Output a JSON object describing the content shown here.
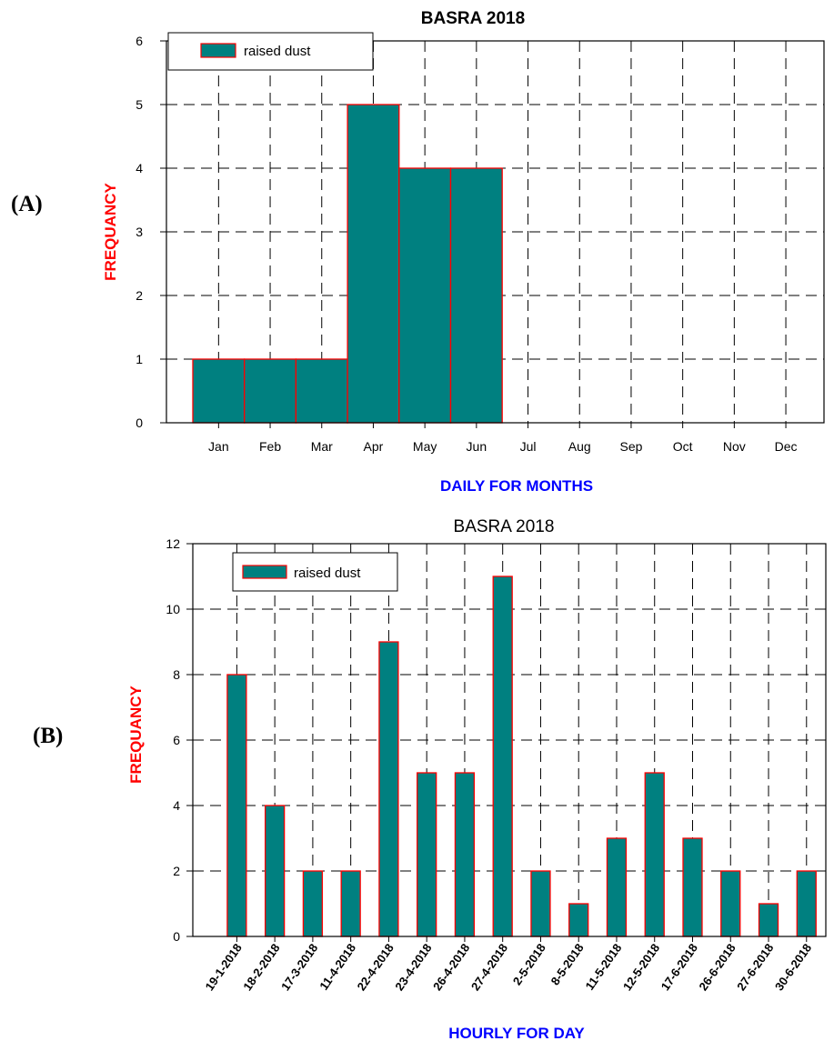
{
  "panels": {
    "a": {
      "letter": "(A)"
    },
    "b": {
      "letter": "(B)"
    }
  },
  "colors": {
    "bar_fill": "#008080",
    "bar_edge": "#ff0000",
    "ylabel": "#ff0000",
    "xlabel": "#0000ff"
  },
  "chart_data": [
    {
      "type": "bar",
      "title": "BASRA 2018",
      "xlabel": "DAILY FOR MONTHS",
      "ylabel": "FREQUANCY",
      "categories": [
        "Jan",
        "Feb",
        "Mar",
        "Apr",
        "May",
        "Jun",
        "Jul",
        "Aug",
        "Sep",
        "Oct",
        "Nov",
        "Dec"
      ],
      "series": [
        {
          "name": "raised dust",
          "values": [
            1,
            1,
            1,
            5,
            4,
            4,
            0,
            0,
            0,
            0,
            0,
            0
          ]
        }
      ],
      "ylim": [
        0,
        6
      ],
      "yticks": [
        0,
        1,
        2,
        3,
        4,
        5,
        6
      ],
      "grid": true,
      "legend": "top-left"
    },
    {
      "type": "bar",
      "title": "BASRA 2018",
      "xlabel": "HOURLY FOR DAY",
      "ylabel": "FREQUANCY",
      "categories": [
        "19-1-2018",
        "18-2-2018",
        "17-3-2018",
        "11-4-2018",
        "22-4-2018",
        "23-4-2018",
        "26-4-2018",
        "27-4-2018",
        "2-5-2018",
        "8-5-2018",
        "11-5-2018",
        "12-5-2018",
        "17-6-2018",
        "26-6-2018",
        "27-6-2018",
        "30-6-2018"
      ],
      "series": [
        {
          "name": "raised dust",
          "values": [
            8,
            4,
            2,
            2,
            9,
            5,
            5,
            11,
            2,
            1,
            3,
            5,
            3,
            2,
            1,
            2
          ]
        }
      ],
      "ylim": [
        0,
        12
      ],
      "yticks": [
        0,
        2,
        4,
        6,
        8,
        10,
        12
      ],
      "grid": true,
      "legend": "top-left"
    }
  ]
}
